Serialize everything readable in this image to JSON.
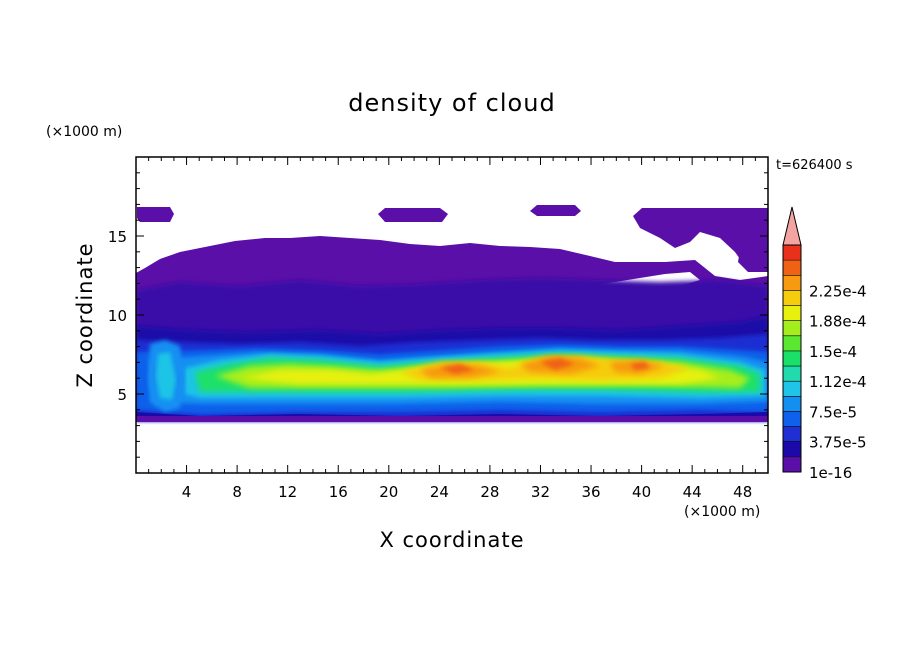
{
  "chart_data": {
    "type": "heatmap",
    "title": "density of cloud",
    "xlabel": "X coordinate",
    "ylabel": "Z coordinate",
    "x_unit": "(×1000 m)",
    "y_unit": "(×1000 m)",
    "time_label": "t=626400 s",
    "xlim": [
      0,
      50
    ],
    "ylim": [
      0,
      20
    ],
    "x_ticks": [
      "4",
      "8",
      "12",
      "16",
      "20",
      "24",
      "28",
      "32",
      "36",
      "40",
      "44",
      "48"
    ],
    "y_ticks": [
      "5",
      "10",
      "15"
    ],
    "colorbar": {
      "labels": [
        "1e-16",
        "3.75e-5",
        "7.5e-5",
        "1.12e-4",
        "1.5e-4",
        "1.88e-4",
        "2.25e-4"
      ],
      "extend": "max",
      "colors": [
        "#5a0fa8",
        "#1c0aa8",
        "#1f2fd2",
        "#0f60ea",
        "#138ff2",
        "#1fc4e6",
        "#21dbaf",
        "#1ae06a",
        "#5be830",
        "#a5ee1e",
        "#e8f00e",
        "#f6cc0e",
        "#f79a10",
        "#ef6214",
        "#e8301a",
        "#f4a3a3"
      ]
    },
    "description_values": {
      "cloud_top_km": 16.5,
      "cloud_base_km": 3.4,
      "core_layer_km": [
        4.5,
        7.8
      ],
      "max_density": 0.000225
    }
  }
}
